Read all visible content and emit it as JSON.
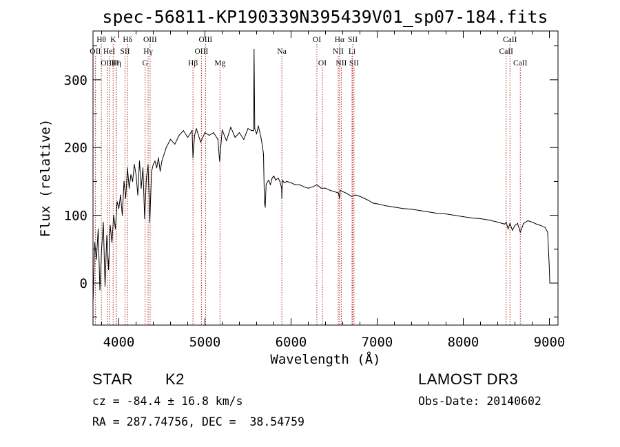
{
  "chart_data": {
    "type": "line",
    "title": "spec-56811-KP190339N395439V01_sp07-184.fits",
    "xlabel": "Wavelength (Å)",
    "ylabel": "Flux (relative)",
    "xlim": [
      3700,
      9100
    ],
    "ylim": [
      -62,
      372
    ],
    "xticks": [
      4000,
      5000,
      6000,
      7000,
      8000,
      9000
    ],
    "yticks": [
      0,
      100,
      200,
      300
    ],
    "xtick_labels": [
      "4000",
      "5000",
      "6000",
      "7000",
      "8000",
      "9000"
    ],
    "ytick_labels": [
      "0",
      "100",
      "200",
      "300"
    ],
    "series": [
      {
        "name": "flux",
        "x": [
          3700,
          3720,
          3740,
          3760,
          3780,
          3800,
          3820,
          3840,
          3860,
          3880,
          3900,
          3920,
          3940,
          3960,
          3980,
          4000,
          4020,
          4040,
          4060,
          4080,
          4100,
          4120,
          4140,
          4160,
          4180,
          4200,
          4220,
          4240,
          4260,
          4280,
          4300,
          4320,
          4340,
          4360,
          4380,
          4400,
          4420,
          4440,
          4460,
          4480,
          4500,
          4550,
          4600,
          4650,
          4700,
          4750,
          4800,
          4850,
          4861,
          4880,
          4900,
          4950,
          5000,
          5050,
          5100,
          5150,
          5170,
          5183,
          5200,
          5250,
          5300,
          5350,
          5400,
          5450,
          5500,
          5540,
          5565,
          5570,
          5578,
          5600,
          5620,
          5650,
          5670,
          5680,
          5690,
          5700,
          5710,
          5720,
          5740,
          5760,
          5780,
          5800,
          5820,
          5850,
          5870,
          5890,
          5893,
          5900,
          5920,
          5950,
          6000,
          6050,
          6100,
          6150,
          6200,
          6250,
          6300,
          6350,
          6400,
          6450,
          6500,
          6550,
          6563,
          6570,
          6600,
          6650,
          6700,
          6750,
          6800,
          6850,
          6900,
          6950,
          7000,
          7100,
          7200,
          7300,
          7400,
          7500,
          7600,
          7700,
          7800,
          7900,
          8000,
          8100,
          8200,
          8300,
          8400,
          8480,
          8498,
          8520,
          8542,
          8570,
          8600,
          8630,
          8662,
          8700,
          8750,
          8800,
          8850,
          8900,
          8950,
          8980,
          9000,
          9005
        ],
        "y": [
          -30,
          60,
          35,
          80,
          -10,
          50,
          90,
          -5,
          70,
          20,
          85,
          60,
          100,
          80,
          120,
          110,
          130,
          100,
          150,
          125,
          170,
          140,
          160,
          150,
          175,
          160,
          130,
          180,
          140,
          170,
          95,
          155,
          175,
          90,
          165,
          175,
          180,
          170,
          185,
          165,
          180,
          200,
          212,
          205,
          218,
          225,
          215,
          225,
          185,
          218,
          228,
          208,
          222,
          218,
          222,
          212,
          180,
          200,
          226,
          210,
          230,
          215,
          222,
          212,
          228,
          225,
          225,
          345,
          228,
          220,
          232,
          215,
          200,
          190,
          120,
          112,
          145,
          148,
          152,
          145,
          155,
          158,
          152,
          155,
          150,
          140,
          125,
          152,
          148,
          150,
          148,
          145,
          145,
          142,
          140,
          142,
          145,
          140,
          140,
          137,
          135,
          133,
          125,
          137,
          135,
          132,
          128,
          130,
          128,
          125,
          122,
          118,
          117,
          114,
          112,
          110,
          109,
          107,
          105,
          103,
          102,
          100,
          98,
          96,
          95,
          93,
          90,
          87,
          90,
          80,
          88,
          78,
          85,
          88,
          75,
          88,
          92,
          90,
          87,
          85,
          82,
          75,
          20,
          0
        ]
      }
    ],
    "spectral_lines": [
      {
        "name": "OII",
        "wavelength": 3727,
        "row": 2
      },
      {
        "name": "Hθ",
        "wavelength": 3797,
        "row": 1
      },
      {
        "name": "OIII",
        "wavelength": 3869,
        "row": 3
      },
      {
        "name": "HeI",
        "wavelength": 3889,
        "row": 2
      },
      {
        "name": "K",
        "wavelength": 3934,
        "row": 1
      },
      {
        "name": "Hη",
        "wavelength": 3970,
        "row": 3
      },
      {
        "name": "H",
        "wavelength": 3968,
        "row": 3
      },
      {
        "name": "SII",
        "wavelength": 4072,
        "row": 2
      },
      {
        "name": "Hδ",
        "wavelength": 4102,
        "row": 1
      },
      {
        "name": "G",
        "wavelength": 4305,
        "row": 3
      },
      {
        "name": "Hγ",
        "wavelength": 4340,
        "row": 2
      },
      {
        "name": "OIII",
        "wavelength": 4363,
        "row": 1
      },
      {
        "name": "Hβ",
        "wavelength": 4861,
        "row": 3
      },
      {
        "name": "OIII",
        "wavelength": 4959,
        "row": 2
      },
      {
        "name": "OIII",
        "wavelength": 5007,
        "row": 1
      },
      {
        "name": "Mg",
        "wavelength": 5175,
        "row": 3
      },
      {
        "name": "Na",
        "wavelength": 5893,
        "row": 2
      },
      {
        "name": "OI",
        "wavelength": 6300,
        "row": 1
      },
      {
        "name": "OI",
        "wavelength": 6364,
        "row": 3
      },
      {
        "name": "NII",
        "wavelength": 6548,
        "row": 2
      },
      {
        "name": "Hα",
        "wavelength": 6563,
        "row": 1
      },
      {
        "name": "NII",
        "wavelength": 6583,
        "row": 3
      },
      {
        "name": "Li",
        "wavelength": 6708,
        "row": 2
      },
      {
        "name": "SII",
        "wavelength": 6716,
        "row": 1
      },
      {
        "name": "SII",
        "wavelength": 6731,
        "row": 3
      },
      {
        "name": "CaII",
        "wavelength": 8498,
        "row": 2
      },
      {
        "name": "CaII",
        "wavelength": 8542,
        "row": 1
      },
      {
        "name": "CaII",
        "wavelength": 8662,
        "row": 3
      }
    ],
    "colors": {
      "spectrum": "#000000",
      "lines": "#b22222",
      "axes": "#000000"
    }
  },
  "info": {
    "class": "STAR",
    "subclass": "K2",
    "survey": "LAMOST DR3",
    "redshift": "cz = -84.4 ± 16.8 km/s",
    "obs_date": "Obs-Date: 20140602",
    "coords": "RA = 287.74756, DEC =  38.54759"
  }
}
